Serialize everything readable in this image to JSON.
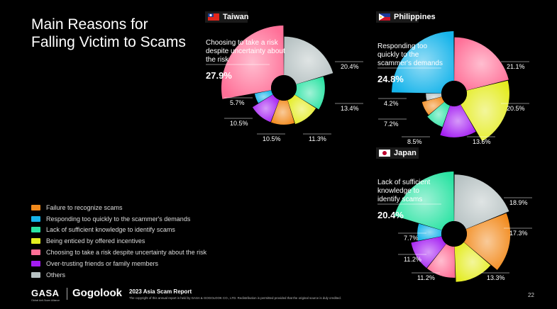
{
  "title_line1": "Main Reasons for",
  "title_line2": "Falling Victim to Scams",
  "legend": [
    {
      "label": "Failure to recognize scams",
      "color": "#f28a1c"
    },
    {
      "label": "Responding too quickly to the scammer's demands",
      "color": "#16b4ea"
    },
    {
      "label": "Lack of sufficient knowledge to identify scams",
      "color": "#2be3a3"
    },
    {
      "label": "Being enticed by offered incentives",
      "color": "#e4ec20"
    },
    {
      "label": "Choosing to take a risk despite uncertainty about the risk",
      "color": "#ff6f97"
    },
    {
      "label": "Over-trusting friends or family members",
      "color": "#a31cf2"
    },
    {
      "label": "Others",
      "color": "#b7c2c3"
    }
  ],
  "chart_data": [
    {
      "type": "pie",
      "country": "Taiwan",
      "flag": "taiwan-flag",
      "headline_label": "Choosing to take a risk despite uncertainty about the risk",
      "headline_value": "27.9%",
      "slices": [
        {
          "category": "Choosing to take a risk despite uncertainty about the risk",
          "value": 27.9,
          "color": "#ff6f97"
        },
        {
          "category": "Others",
          "value": 20.4,
          "color": "#b7c2c3"
        },
        {
          "category": "Lack of sufficient knowledge to identify scams",
          "value": 13.4,
          "color": "#2be3a3"
        },
        {
          "category": "Being enticed by offered incentives",
          "value": 11.3,
          "color": "#e4ec20"
        },
        {
          "category": "Failure to recognize scams",
          "value": 10.5,
          "color": "#f28a1c"
        },
        {
          "category": "Over-trusting friends or family members",
          "value": 10.5,
          "color": "#a31cf2"
        },
        {
          "category": "Responding too quickly to the scammer's demands",
          "value": 5.7,
          "color": "#16b4ea"
        }
      ],
      "labels": [
        "20.4%",
        "13.4%",
        "11.3%",
        "10.5%",
        "10.5%",
        "5.7%"
      ]
    },
    {
      "type": "pie",
      "country": "Philippines",
      "flag": "philippines-flag",
      "headline_label": "Responding too quickly to the scammer's demands",
      "headline_value": "24.8%",
      "slices": [
        {
          "category": "Responding too quickly to the scammer's demands",
          "value": 24.8,
          "color": "#16b4ea"
        },
        {
          "category": "Choosing to take a risk despite uncertainty about the risk",
          "value": 21.1,
          "color": "#ff6f97"
        },
        {
          "category": "Being enticed by offered incentives",
          "value": 20.5,
          "color": "#e4ec20"
        },
        {
          "category": "Over-trusting friends or family members",
          "value": 13.6,
          "color": "#a31cf2"
        },
        {
          "category": "Lack of sufficient knowledge to identify scams",
          "value": 8.5,
          "color": "#2be3a3"
        },
        {
          "category": "Failure to recognize scams",
          "value": 7.2,
          "color": "#f28a1c"
        },
        {
          "category": "Others",
          "value": 4.2,
          "color": "#b7c2c3"
        }
      ],
      "labels": [
        "21.1%",
        "20.5%",
        "13.6%",
        "8.5%",
        "7.2%",
        "4.2%"
      ]
    },
    {
      "type": "pie",
      "country": "Japan",
      "flag": "japan-flag",
      "headline_label": "Lack of sufficient knowledge to identify scams",
      "headline_value": "20.4%",
      "slices": [
        {
          "category": "Lack of sufficient knowledge to identify scams",
          "value": 20.4,
          "color": "#2be3a3"
        },
        {
          "category": "Others",
          "value": 18.9,
          "color": "#b7c2c3"
        },
        {
          "category": "Failure to recognize scams",
          "value": 17.3,
          "color": "#f28a1c"
        },
        {
          "category": "Being enticed by offered incentives",
          "value": 13.3,
          "color": "#e4ec20"
        },
        {
          "category": "Choosing to take a risk despite uncertainty about the risk",
          "value": 11.2,
          "color": "#ff6f97"
        },
        {
          "category": "Over-trusting friends or family members",
          "value": 11.2,
          "color": "#a31cf2"
        },
        {
          "category": "Responding too quickly to the scammer's demands",
          "value": 7.7,
          "color": "#16b4ea"
        }
      ],
      "labels": [
        "18.9%",
        "17.3%",
        "13.3%",
        "11.2%",
        "11.2%",
        "7.7%"
      ]
    }
  ],
  "footer": {
    "logo1": "GASA",
    "logo1_sub": "Global Anti-Scam Alliance",
    "logo2": "Gogolook",
    "report_title": "2023 Asia Scam Report",
    "copyright": "The copyright of this annual report is held by GASA & GOGOLOOK CO., LTD. Redistribution is permitted provided that the original source is duly credited.",
    "page": "22"
  }
}
